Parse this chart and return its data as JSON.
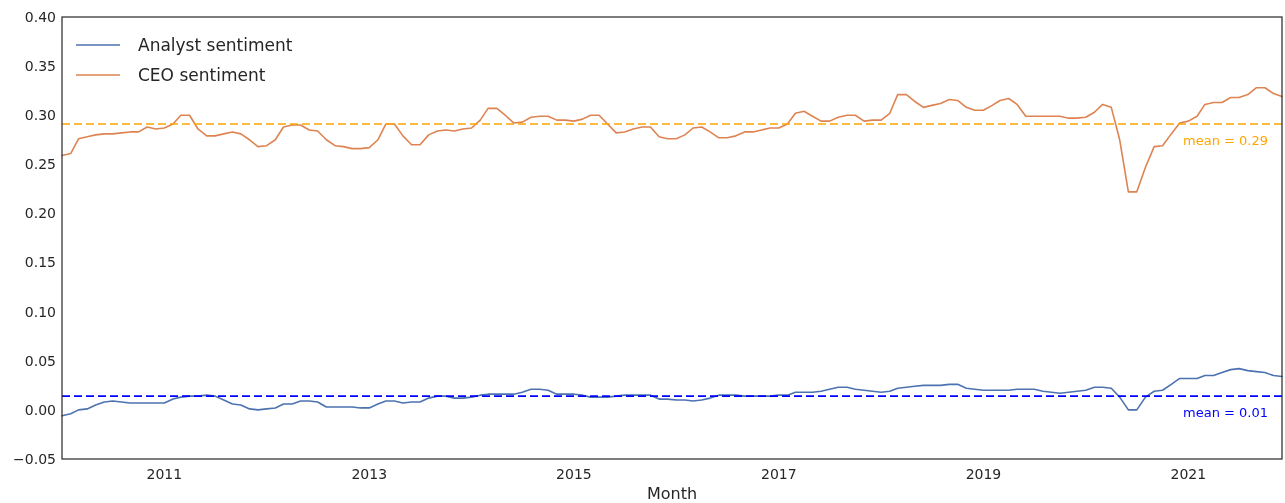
{
  "chart_data": {
    "type": "line",
    "xlabel": "Month",
    "x": [
      "2010-01",
      "2010-02",
      "2010-03",
      "2010-04",
      "2010-05",
      "2010-06",
      "2010-07",
      "2010-08",
      "2010-09",
      "2010-10",
      "2010-11",
      "2010-12",
      "2011-01",
      "2011-02",
      "2011-03",
      "2011-04",
      "2011-05",
      "2011-06",
      "2011-07",
      "2011-08",
      "2011-09",
      "2011-10",
      "2011-11",
      "2011-12",
      "2012-01",
      "2012-02",
      "2012-03",
      "2012-04",
      "2012-05",
      "2012-06",
      "2012-07",
      "2012-08",
      "2012-09",
      "2012-10",
      "2012-11",
      "2012-12",
      "2013-01",
      "2013-02",
      "2013-03",
      "2013-04",
      "2013-05",
      "2013-06",
      "2013-07",
      "2013-08",
      "2013-09",
      "2013-10",
      "2013-11",
      "2013-12",
      "2014-01",
      "2014-02",
      "2014-03",
      "2014-04",
      "2014-05",
      "2014-06",
      "2014-07",
      "2014-08",
      "2014-09",
      "2014-10",
      "2014-11",
      "2014-12",
      "2015-01",
      "2015-02",
      "2015-03",
      "2015-04",
      "2015-05",
      "2015-06",
      "2015-07",
      "2015-08",
      "2015-09",
      "2015-10",
      "2015-11",
      "2015-12",
      "2016-01",
      "2016-02",
      "2016-03",
      "2016-04",
      "2016-05",
      "2016-06",
      "2016-07",
      "2016-08",
      "2016-09",
      "2016-10",
      "2016-11",
      "2016-12",
      "2017-01",
      "2017-02",
      "2017-03",
      "2017-04",
      "2017-05",
      "2017-06",
      "2017-07",
      "2017-08",
      "2017-09",
      "2017-10",
      "2017-11",
      "2017-12",
      "2018-01",
      "2018-02",
      "2018-03",
      "2018-04",
      "2018-05",
      "2018-06",
      "2018-07",
      "2018-08",
      "2018-09",
      "2018-10",
      "2018-11",
      "2018-12",
      "2019-01",
      "2019-02",
      "2019-03",
      "2019-04",
      "2019-05",
      "2019-06",
      "2019-07",
      "2019-08",
      "2019-09",
      "2019-10",
      "2019-11",
      "2019-12",
      "2020-01",
      "2020-02",
      "2020-03",
      "2020-04",
      "2020-05",
      "2020-06",
      "2020-07",
      "2020-08",
      "2020-09",
      "2020-10",
      "2020-11",
      "2020-12",
      "2021-01",
      "2021-02",
      "2021-03",
      "2021-04",
      "2021-05",
      "2021-06",
      "2021-07",
      "2021-08",
      "2021-09",
      "2021-10",
      "2021-11",
      "2021-12"
    ],
    "series": [
      {
        "name": "Analyst sentiment",
        "color": "#4c72b0",
        "values": [
          -0.006,
          -0.004,
          0.0,
          0.001,
          0.005,
          0.008,
          0.009,
          0.008,
          0.007,
          0.007,
          0.007,
          0.007,
          0.007,
          0.011,
          0.013,
          0.014,
          0.014,
          0.015,
          0.014,
          0.01,
          0.006,
          0.005,
          0.001,
          0.0,
          0.001,
          0.002,
          0.006,
          0.006,
          0.009,
          0.009,
          0.008,
          0.003,
          0.003,
          0.003,
          0.003,
          0.002,
          0.002,
          0.006,
          0.009,
          0.009,
          0.007,
          0.008,
          0.008,
          0.012,
          0.014,
          0.014,
          0.012,
          0.012,
          0.013,
          0.015,
          0.016,
          0.016,
          0.016,
          0.016,
          0.018,
          0.021,
          0.021,
          0.02,
          0.016,
          0.016,
          0.016,
          0.015,
          0.013,
          0.013,
          0.013,
          0.014,
          0.015,
          0.015,
          0.015,
          0.015,
          0.011,
          0.011,
          0.01,
          0.01,
          0.009,
          0.01,
          0.012,
          0.015,
          0.015,
          0.015,
          0.014,
          0.014,
          0.014,
          0.014,
          0.015,
          0.015,
          0.018,
          0.018,
          0.018,
          0.019,
          0.021,
          0.023,
          0.023,
          0.021,
          0.02,
          0.019,
          0.018,
          0.019,
          0.022,
          0.023,
          0.024,
          0.025,
          0.025,
          0.025,
          0.026,
          0.026,
          0.022,
          0.021,
          0.02,
          0.02,
          0.02,
          0.02,
          0.021,
          0.021,
          0.021,
          0.019,
          0.018,
          0.017,
          0.018,
          0.019,
          0.02,
          0.023,
          0.023,
          0.022,
          0.013,
          0.0,
          0.0,
          0.013,
          0.019,
          0.02,
          0.026,
          0.032,
          0.032,
          0.032,
          0.035,
          0.035,
          0.038,
          0.041,
          0.042,
          0.04,
          0.039,
          0.038,
          0.035,
          0.034
        ]
      },
      {
        "name": "CEO sentiment",
        "color": "#dd8452",
        "values": [
          0.259,
          0.261,
          0.276,
          0.278,
          0.28,
          0.281,
          0.281,
          0.282,
          0.283,
          0.283,
          0.288,
          0.286,
          0.287,
          0.291,
          0.3,
          0.3,
          0.286,
          0.279,
          0.279,
          0.281,
          0.283,
          0.281,
          0.275,
          0.268,
          0.269,
          0.275,
          0.288,
          0.29,
          0.29,
          0.285,
          0.284,
          0.275,
          0.269,
          0.268,
          0.266,
          0.266,
          0.267,
          0.275,
          0.291,
          0.291,
          0.279,
          0.27,
          0.27,
          0.28,
          0.284,
          0.285,
          0.284,
          0.286,
          0.287,
          0.295,
          0.307,
          0.307,
          0.3,
          0.292,
          0.293,
          0.298,
          0.299,
          0.299,
          0.295,
          0.295,
          0.294,
          0.296,
          0.3,
          0.3,
          0.291,
          0.282,
          0.283,
          0.286,
          0.288,
          0.288,
          0.278,
          0.276,
          0.276,
          0.28,
          0.287,
          0.288,
          0.283,
          0.277,
          0.277,
          0.279,
          0.283,
          0.283,
          0.285,
          0.287,
          0.287,
          0.291,
          0.302,
          0.304,
          0.299,
          0.294,
          0.294,
          0.298,
          0.3,
          0.3,
          0.294,
          0.295,
          0.295,
          0.302,
          0.321,
          0.321,
          0.314,
          0.308,
          0.31,
          0.312,
          0.316,
          0.315,
          0.308,
          0.305,
          0.305,
          0.31,
          0.315,
          0.317,
          0.311,
          0.299,
          0.299,
          0.299,
          0.299,
          0.299,
          0.297,
          0.297,
          0.298,
          0.303,
          0.311,
          0.308,
          0.275,
          0.222,
          0.222,
          0.247,
          0.268,
          0.269,
          0.281,
          0.292,
          0.294,
          0.299,
          0.311,
          0.313,
          0.313,
          0.318,
          0.318,
          0.321,
          0.328,
          0.328,
          0.322,
          0.319
        ]
      }
    ],
    "xlim": [
      "2010-01",
      "2021-12"
    ],
    "xticks": [
      "2011",
      "2013",
      "2015",
      "2017",
      "2019",
      "2021"
    ],
    "ylim": [
      -0.05,
      0.4
    ],
    "yticks": [
      {
        "value": -0.05,
        "label": "−0.05"
      },
      {
        "value": 0,
        "label": "0.00"
      },
      {
        "value": 0.05,
        "label": "0.05"
      },
      {
        "value": 0.1,
        "label": "0.10"
      },
      {
        "value": 0.15,
        "label": "0.15"
      },
      {
        "value": 0.2,
        "label": "0.20"
      },
      {
        "value": 0.25,
        "label": "0.25"
      },
      {
        "value": 0.3,
        "label": "0.30"
      },
      {
        "value": 0.35,
        "label": "0.35"
      },
      {
        "value": 0.4,
        "label": "0.40"
      }
    ],
    "ref_lines": [
      {
        "axis": "y",
        "value": 0.291,
        "label": "mean = 0.29",
        "color": "#ffa500",
        "line_style": "dashed"
      },
      {
        "axis": "y",
        "value": 0.014,
        "label": "mean = 0.01",
        "color": "#0000ff",
        "line_style": "dashed"
      }
    ],
    "grid": false,
    "legend": "top left",
    "line_style": "solid"
  }
}
